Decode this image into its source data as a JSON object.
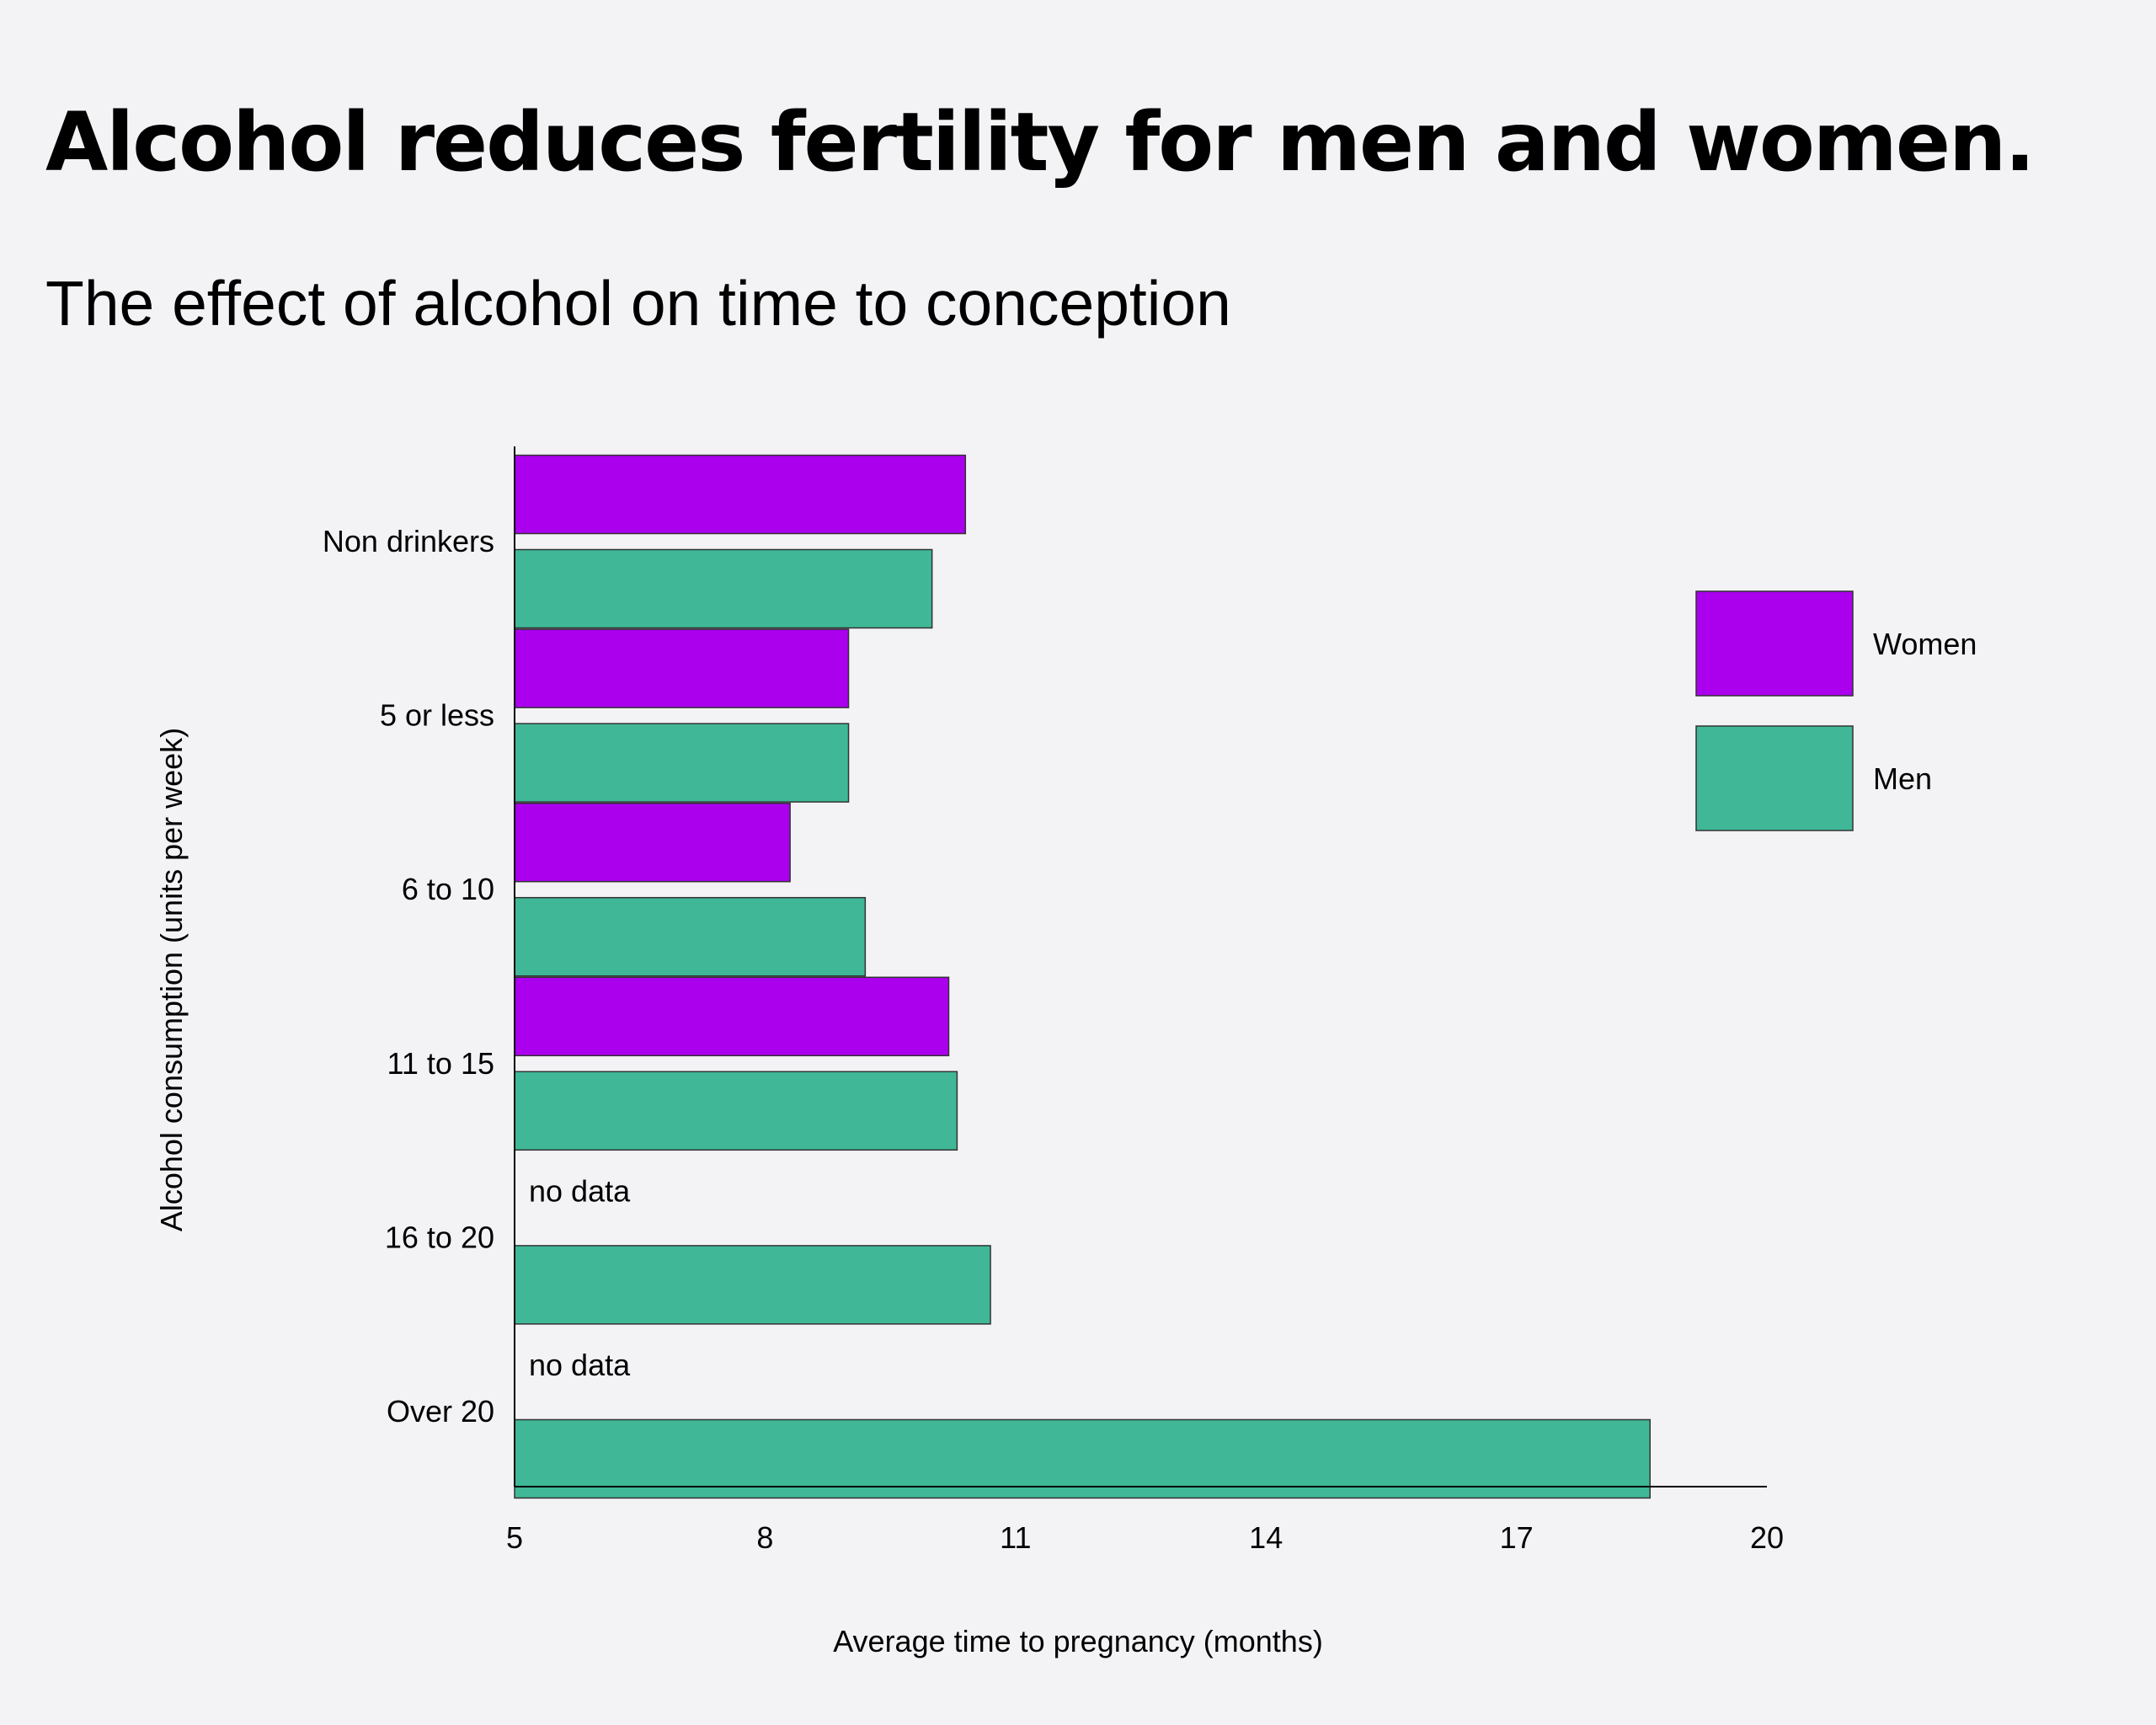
{
  "title": "Alcohol reduces fertility for men and women.",
  "subtitle": "The effect of alcohol on time to conception",
  "colors": {
    "background": "#f3f3f5",
    "women": "#aa00ee",
    "men": "#40b898",
    "bar_stroke": "#333333",
    "axis": "#000000"
  },
  "chart_data": {
    "type": "bar",
    "orientation": "horizontal",
    "title": "Alcohol reduces fertility for men and women.",
    "subtitle": "The effect of alcohol on time to conception",
    "xlabel": "Average time to pregnancy (months)",
    "ylabel": "Alcohol consumption (units per week)",
    "categories": [
      "Non drinkers",
      "5 or less",
      "6 to 10",
      "11 to 15",
      "16 to 20",
      "Over 20"
    ],
    "series": [
      {
        "name": "Women",
        "color": "#aa00ee",
        "values": [
          10.4,
          9.0,
          8.3,
          10.2,
          null,
          null
        ]
      },
      {
        "name": "Men",
        "color": "#40b898",
        "values": [
          10.0,
          9.0,
          9.2,
          10.3,
          10.7,
          18.6
        ]
      }
    ],
    "missing_label": "no data",
    "xlim": [
      5,
      20
    ],
    "xticks": [
      5,
      8,
      11,
      14,
      17,
      20
    ],
    "grid": false,
    "legend": {
      "position": "right",
      "entries": [
        "Women",
        "Men"
      ]
    }
  }
}
